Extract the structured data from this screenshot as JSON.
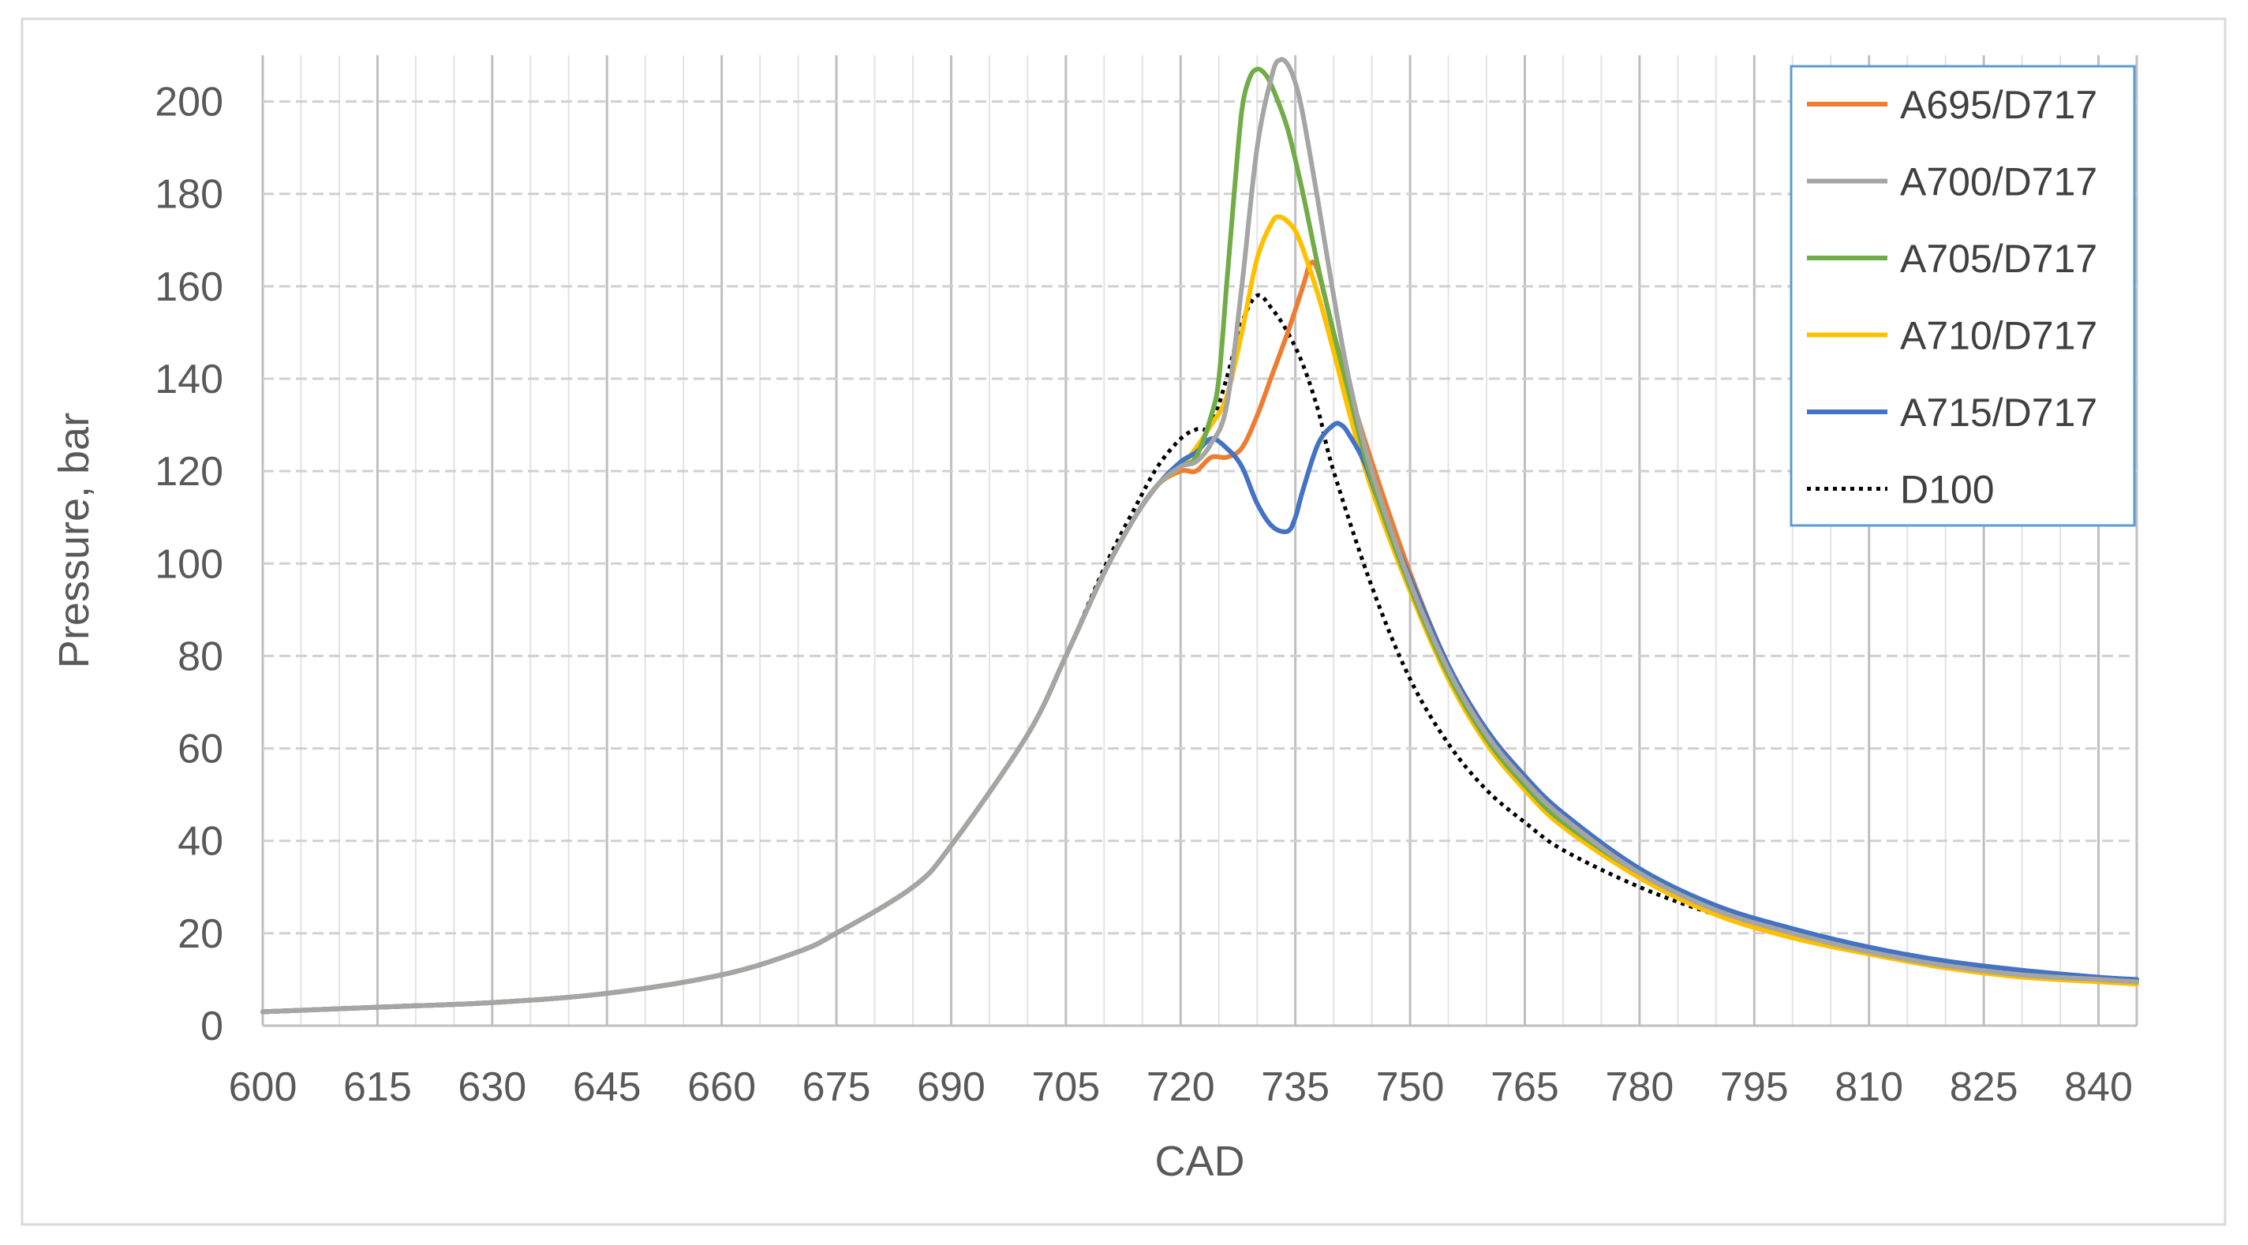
{
  "chart_data": {
    "type": "line",
    "title": "",
    "xlabel": "CAD",
    "ylabel": "Pressure, bar",
    "xlim": [
      600,
      845
    ],
    "ylim": [
      0,
      210
    ],
    "x_ticks": [
      600,
      615,
      630,
      645,
      660,
      675,
      690,
      705,
      720,
      735,
      750,
      765,
      780,
      795,
      810,
      825,
      840
    ],
    "y_ticks": [
      0,
      20,
      40,
      60,
      80,
      100,
      120,
      140,
      160,
      180,
      200
    ],
    "grid": true,
    "minor_grid_x": true,
    "legend_position": "top-right",
    "series": [
      {
        "name": "A695/D717",
        "color": "#ed7d31",
        "style": "solid",
        "x": [
          600,
          615,
          630,
          645,
          660,
          670,
          675,
          685,
          690,
          700,
          705,
          710,
          714,
          717,
          720,
          722,
          724,
          726,
          728,
          730,
          732,
          734,
          736,
          737,
          738,
          740,
          742,
          745,
          750,
          755,
          760,
          765,
          770,
          780,
          790,
          800,
          810,
          820,
          830,
          840,
          845
        ],
        "y": [
          3,
          4,
          5,
          7,
          11,
          16,
          20,
          30,
          39,
          63,
          80,
          98,
          110,
          117,
          120,
          120,
          123,
          123,
          125,
          132,
          141,
          150,
          160,
          165,
          163,
          150,
          138,
          122,
          98,
          78,
          64,
          54,
          45,
          33,
          25,
          20,
          16,
          13,
          11,
          10,
          9.5
        ]
      },
      {
        "name": "A700/D717",
        "color": "#a5a5a5",
        "style": "solid",
        "x": [
          600,
          615,
          630,
          645,
          660,
          670,
          675,
          685,
          690,
          700,
          705,
          710,
          714,
          717,
          720,
          722,
          724,
          726,
          728,
          730,
          732,
          733,
          734,
          735,
          736,
          738,
          740,
          742,
          745,
          750,
          755,
          760,
          765,
          770,
          780,
          790,
          800,
          810,
          820,
          830,
          840,
          845
        ],
        "y": [
          3,
          4,
          5,
          7,
          11,
          16,
          20,
          30,
          39,
          63,
          80,
          98,
          110,
          117,
          121,
          122,
          126,
          134,
          160,
          190,
          206,
          209,
          208,
          204,
          197,
          178,
          158,
          140,
          120,
          96,
          77,
          63,
          53,
          45,
          33,
          25,
          20,
          16,
          13,
          11,
          10,
          9.5
        ]
      },
      {
        "name": "A705/D717",
        "color": "#70ad47",
        "style": "solid",
        "x": [
          600,
          615,
          630,
          645,
          660,
          670,
          675,
          685,
          690,
          700,
          705,
          710,
          714,
          717,
          720,
          722,
          724,
          725,
          726,
          727,
          728,
          729,
          730,
          731,
          732,
          734,
          736,
          738,
          740,
          742,
          745,
          750,
          755,
          760,
          765,
          770,
          780,
          790,
          800,
          810,
          820,
          830,
          840,
          845
        ],
        "y": [
          3,
          4,
          5,
          7,
          11,
          16,
          20,
          30,
          39,
          63,
          80,
          98,
          110,
          117,
          121,
          123,
          132,
          140,
          160,
          180,
          198,
          205,
          207,
          206,
          203,
          194,
          180,
          164,
          150,
          137,
          118,
          95,
          76,
          62,
          52,
          44,
          33,
          25,
          20,
          16,
          13,
          11,
          10,
          9.5
        ]
      },
      {
        "name": "A710/D717",
        "color": "#ffc000",
        "style": "solid",
        "x": [
          600,
          615,
          630,
          645,
          660,
          670,
          675,
          685,
          690,
          700,
          705,
          710,
          714,
          717,
          720,
          722,
          724,
          726,
          728,
          730,
          732,
          733,
          734,
          735,
          736,
          738,
          740,
          742,
          745,
          750,
          755,
          760,
          765,
          770,
          780,
          790,
          800,
          810,
          820,
          830,
          840,
          845
        ],
        "y": [
          3,
          4,
          5,
          7,
          11,
          16,
          20,
          30,
          39,
          63,
          80,
          98,
          110,
          117,
          121,
          125,
          130,
          136,
          150,
          166,
          174,
          175,
          174,
          172,
          168,
          158,
          146,
          133,
          116,
          94,
          75,
          61,
          51,
          43,
          32,
          24,
          19,
          15.5,
          12.5,
          10.5,
          9.5,
          9
        ]
      },
      {
        "name": "A715/D717",
        "color": "#4472c4",
        "style": "solid",
        "x": [
          600,
          615,
          630,
          645,
          660,
          670,
          675,
          685,
          690,
          700,
          705,
          710,
          714,
          717,
          720,
          722,
          724,
          726,
          728,
          730,
          732,
          734,
          735,
          736,
          738,
          740,
          741,
          742,
          744,
          746,
          750,
          755,
          760,
          765,
          770,
          780,
          790,
          800,
          810,
          820,
          830,
          840,
          845
        ],
        "y": [
          3,
          4,
          5,
          7,
          11,
          16,
          20,
          30,
          39,
          63,
          80,
          98,
          110,
          117,
          122,
          124,
          127,
          125,
          121,
          113,
          108,
          107,
          110,
          116,
          126,
          130,
          130,
          128,
          122,
          113,
          97,
          78,
          64,
          54,
          46,
          34,
          26,
          21,
          17,
          14,
          12,
          10.5,
          10
        ]
      },
      {
        "name": "D100",
        "color": "#000000",
        "style": "dotted",
        "x": [
          600,
          615,
          630,
          645,
          660,
          670,
          675,
          685,
          690,
          700,
          705,
          710,
          714,
          717,
          720,
          722,
          724,
          726,
          728,
          730,
          732,
          734,
          736,
          738,
          740,
          745,
          750,
          755,
          760,
          765,
          770,
          780,
          790,
          800,
          810,
          820,
          830,
          840,
          845
        ],
        "y": [
          3,
          4,
          5,
          7,
          11,
          16,
          20,
          30,
          39,
          63,
          80,
          99,
          112,
          121,
          127,
          129,
          130,
          140,
          152,
          158,
          155,
          150,
          143,
          133,
          120,
          95,
          75,
          61,
          51,
          44,
          38,
          30,
          24,
          19.5,
          16,
          13.5,
          11.5,
          10.5,
          10
        ]
      }
    ]
  }
}
